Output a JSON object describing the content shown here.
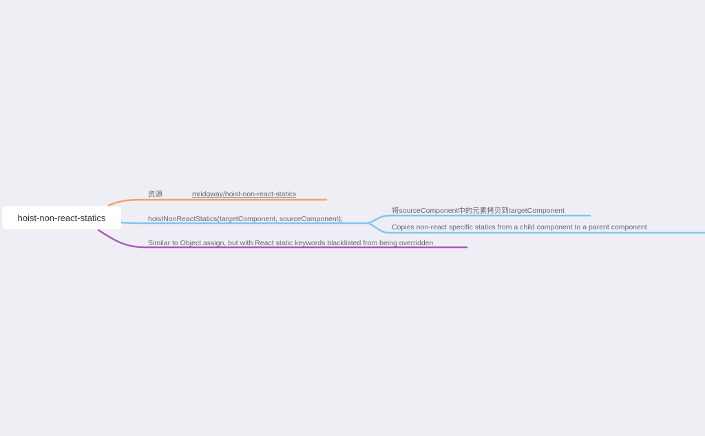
{
  "map": {
    "root": {
      "label": "hoist-non-react-statics"
    },
    "branches": [
      {
        "label": "资源",
        "link_text": "mridgway/hoist-non-react-statics",
        "color": "#f4a06a"
      },
      {
        "label": "hoistNonReactStatics(targetComponent, sourceComponent);",
        "color": "#7fc6ef",
        "children": [
          {
            "label": "将sourceComponent中的元素拷贝到targetComponent"
          },
          {
            "label": "Copies non-react specific statics from a child component to a parent component"
          }
        ]
      },
      {
        "label": "Similar to Object.assign, but with React static keywords blacklisted from being overridden",
        "color": "#ac55be"
      }
    ]
  },
  "colors": {
    "background": "#efeef4",
    "node_fill": "#ffffff",
    "text": "#676770",
    "root_text": "#2f2f38"
  }
}
